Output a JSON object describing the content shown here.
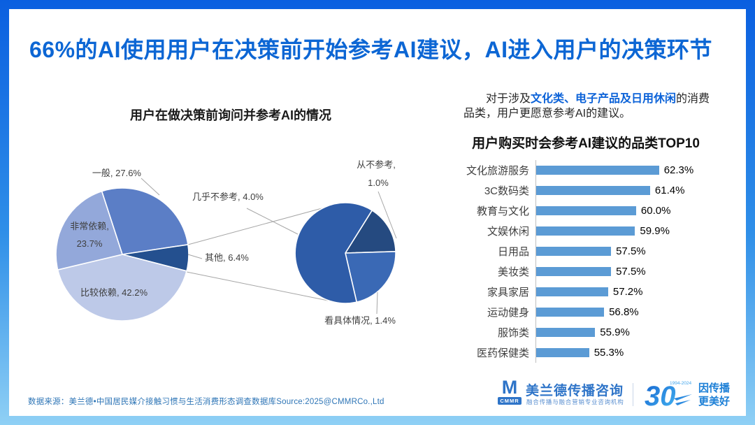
{
  "page": {
    "title": "66%的AI使用用户在决策前开始参考AI建议，AI进入用户的决策环节",
    "accent_color": "#0c66d4"
  },
  "insight": {
    "highlight_color": "#0b62d8",
    "segments": [
      {
        "text": "对于涉及",
        "highlight": false
      },
      {
        "text": "文化类、电子产品及日用休闲",
        "highlight": true
      },
      {
        "text": "的消费品类，用户更愿意参考AI的建议。",
        "highlight": false
      }
    ]
  },
  "chart_data": [
    {
      "type": "pie",
      "variant": "pie-of-pie",
      "title": "用户在做决策前询问并参考AI的情况",
      "unit": "%",
      "legend": false,
      "main_series": [
        {
          "label": "一般",
          "value": 27.6,
          "color": "#5b7ec6"
        },
        {
          "label": "其他",
          "value": 6.4,
          "color": "#24508f"
        },
        {
          "label": "比较依赖",
          "value": 42.2,
          "color": "#bdc9e8"
        },
        {
          "label": "非常依赖",
          "value": 23.7,
          "color": "#93a8da"
        }
      ],
      "secondary_breakdown_of": "其他",
      "secondary_series": [
        {
          "label": "从不参考",
          "value": 1.0,
          "color": "#254a80"
        },
        {
          "label": "看具体情况",
          "value": 1.4,
          "color": "#3a69b5"
        },
        {
          "label": "几乎不参考",
          "value": 4.0,
          "color": "#2e5ca8"
        }
      ]
    },
    {
      "type": "bar",
      "orientation": "horizontal",
      "title": "用户购买时会参考AI建议的品类TOP10",
      "categories": [
        "文化旅游服务",
        "3C数码类",
        "教育与文化",
        "文娱休闲",
        "日用品",
        "美妆类",
        "家具家居",
        "运动健身",
        "服饰类",
        "医药保健类"
      ],
      "values": [
        62.3,
        61.4,
        60.0,
        59.9,
        57.5,
        57.5,
        57.2,
        56.8,
        55.9,
        55.3
      ],
      "value_suffix": "%",
      "bar_color": "#5b9bd5",
      "axis_min": 50,
      "axis_max": 64,
      "grid": false,
      "legend": false
    }
  ],
  "footer": {
    "source": "数据来源：美兰德•中国居民媒介接触习惯与生活消费形态调查数据库Source:2025@CMMRCo.,Ltd",
    "brand": {
      "logo_letter": "M",
      "logo_abbr": "CMMR",
      "name": "美兰德传播咨询",
      "tagline": "融合传播与融合营销专业咨询机构"
    },
    "anniversary": {
      "number": "30",
      "years": "1994-2024",
      "slogan_line1": "因传播",
      "slogan_line2": "更美好"
    }
  }
}
